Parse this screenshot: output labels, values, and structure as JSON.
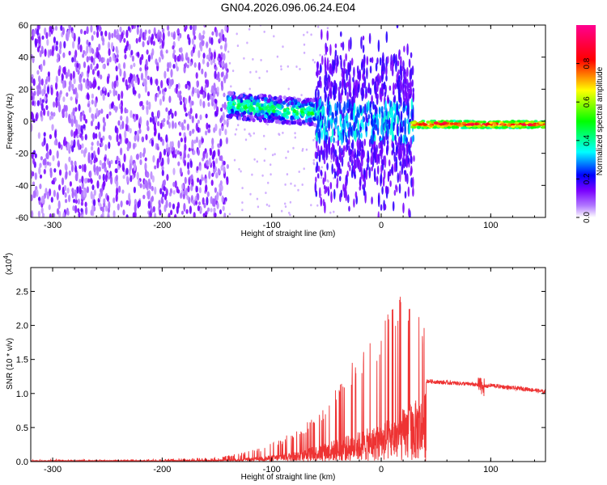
{
  "chart_data": [
    {
      "type": "heatmap",
      "title": "GN04.2026.096.06.24.E04",
      "xlabel": "Height of straight line (km)",
      "ylabel": "Frequency (Hz)",
      "xlim": [
        -320,
        150
      ],
      "ylim": [
        -60,
        60
      ],
      "xticks": [
        -300,
        -200,
        -100,
        0,
        100
      ],
      "xtick_labels": [
        "-300",
        "-200",
        "-100",
        "0",
        "100"
      ],
      "yticks": [
        -60,
        -40,
        -20,
        0,
        20,
        40,
        60
      ],
      "ytick_labels": [
        "-60",
        "-40",
        "-20",
        "0",
        "20",
        "40",
        "60"
      ],
      "colorbar": {
        "label": "Normalized spectral amplitude",
        "range": [
          0,
          1
        ],
        "ticks": [
          0.0,
          0.2,
          0.4,
          0.6,
          0.8
        ],
        "tick_labels": [
          "0.0",
          "0.2",
          "0.4",
          "0.6",
          "0.8"
        ],
        "colors": [
          "#ffffff",
          "#7a00ff",
          "#0000ff",
          "#00ffff",
          "#00ff00",
          "#ffff00",
          "#ff0000",
          "#ff0080"
        ]
      },
      "regions": [
        {
          "x_range": [
            -320,
            -140
          ],
          "freq_range": [
            -60,
            60
          ],
          "amplitude": "low (0.0-0.15), scattered noise"
        },
        {
          "x_range": [
            -140,
            -60
          ],
          "freq_center": 5,
          "amplitude": "0.2-0.6 band"
        },
        {
          "x_range": [
            -60,
            30
          ],
          "freq_range": [
            -60,
            60
          ],
          "amplitude": "0.1-0.4 vertical streaks"
        },
        {
          "x_range": [
            30,
            150
          ],
          "freq_center": -2,
          "amplitude": "0.6-1.0 narrow band"
        }
      ]
    },
    {
      "type": "line",
      "xlabel": "Height of straight line (km)",
      "ylabel": "SNR (10 * v/v)",
      "yscale_label": "(x10",
      "yscale_exp": "4",
      "xlim": [
        -320,
        150
      ],
      "ylim": [
        0,
        2.85
      ],
      "xticks": [
        -300,
        -200,
        -100,
        0,
        100
      ],
      "xtick_labels": [
        "-300",
        "-200",
        "-100",
        "0",
        "100"
      ],
      "yticks": [
        0,
        0.5,
        1.0,
        1.5,
        2.0,
        2.5
      ],
      "ytick_labels": [
        "0.0",
        "0.5",
        "1.0",
        "1.5",
        "2.0",
        "2.5"
      ],
      "color": "#ee3333",
      "series": [
        {
          "name": "SNR",
          "x": [
            -320,
            -250,
            -200,
            -150,
            -130,
            -110,
            -90,
            -70,
            -50,
            -30,
            -10,
            0,
            10,
            20,
            25,
            30,
            35,
            40,
            41,
            45,
            50,
            60,
            70,
            80,
            90,
            95,
            100,
            110,
            120,
            130,
            140,
            150
          ],
          "base": [
            0.01,
            0.01,
            0.01,
            0.02,
            0.03,
            0.06,
            0.1,
            0.16,
            0.25,
            0.35,
            0.45,
            0.5,
            0.6,
            0.7,
            0.78,
            0.8,
            0.85,
            0.9,
            1.18,
            1.18,
            1.17,
            1.16,
            1.15,
            1.14,
            1.12,
            1.1,
            1.12,
            1.1,
            1.08,
            1.07,
            1.05,
            1.02
          ],
          "peak": [
            0.03,
            0.03,
            0.04,
            0.06,
            0.12,
            0.2,
            0.35,
            0.55,
            0.85,
            1.4,
            1.8,
            2.0,
            2.3,
            2.6,
            2.85,
            2.4,
            2.3,
            2.2,
            1.25,
            1.24,
            1.23,
            1.22,
            1.21,
            1.2,
            1.3,
            1.18,
            1.17,
            1.15,
            1.13,
            1.11,
            1.09,
            1.06
          ]
        }
      ]
    }
  ]
}
